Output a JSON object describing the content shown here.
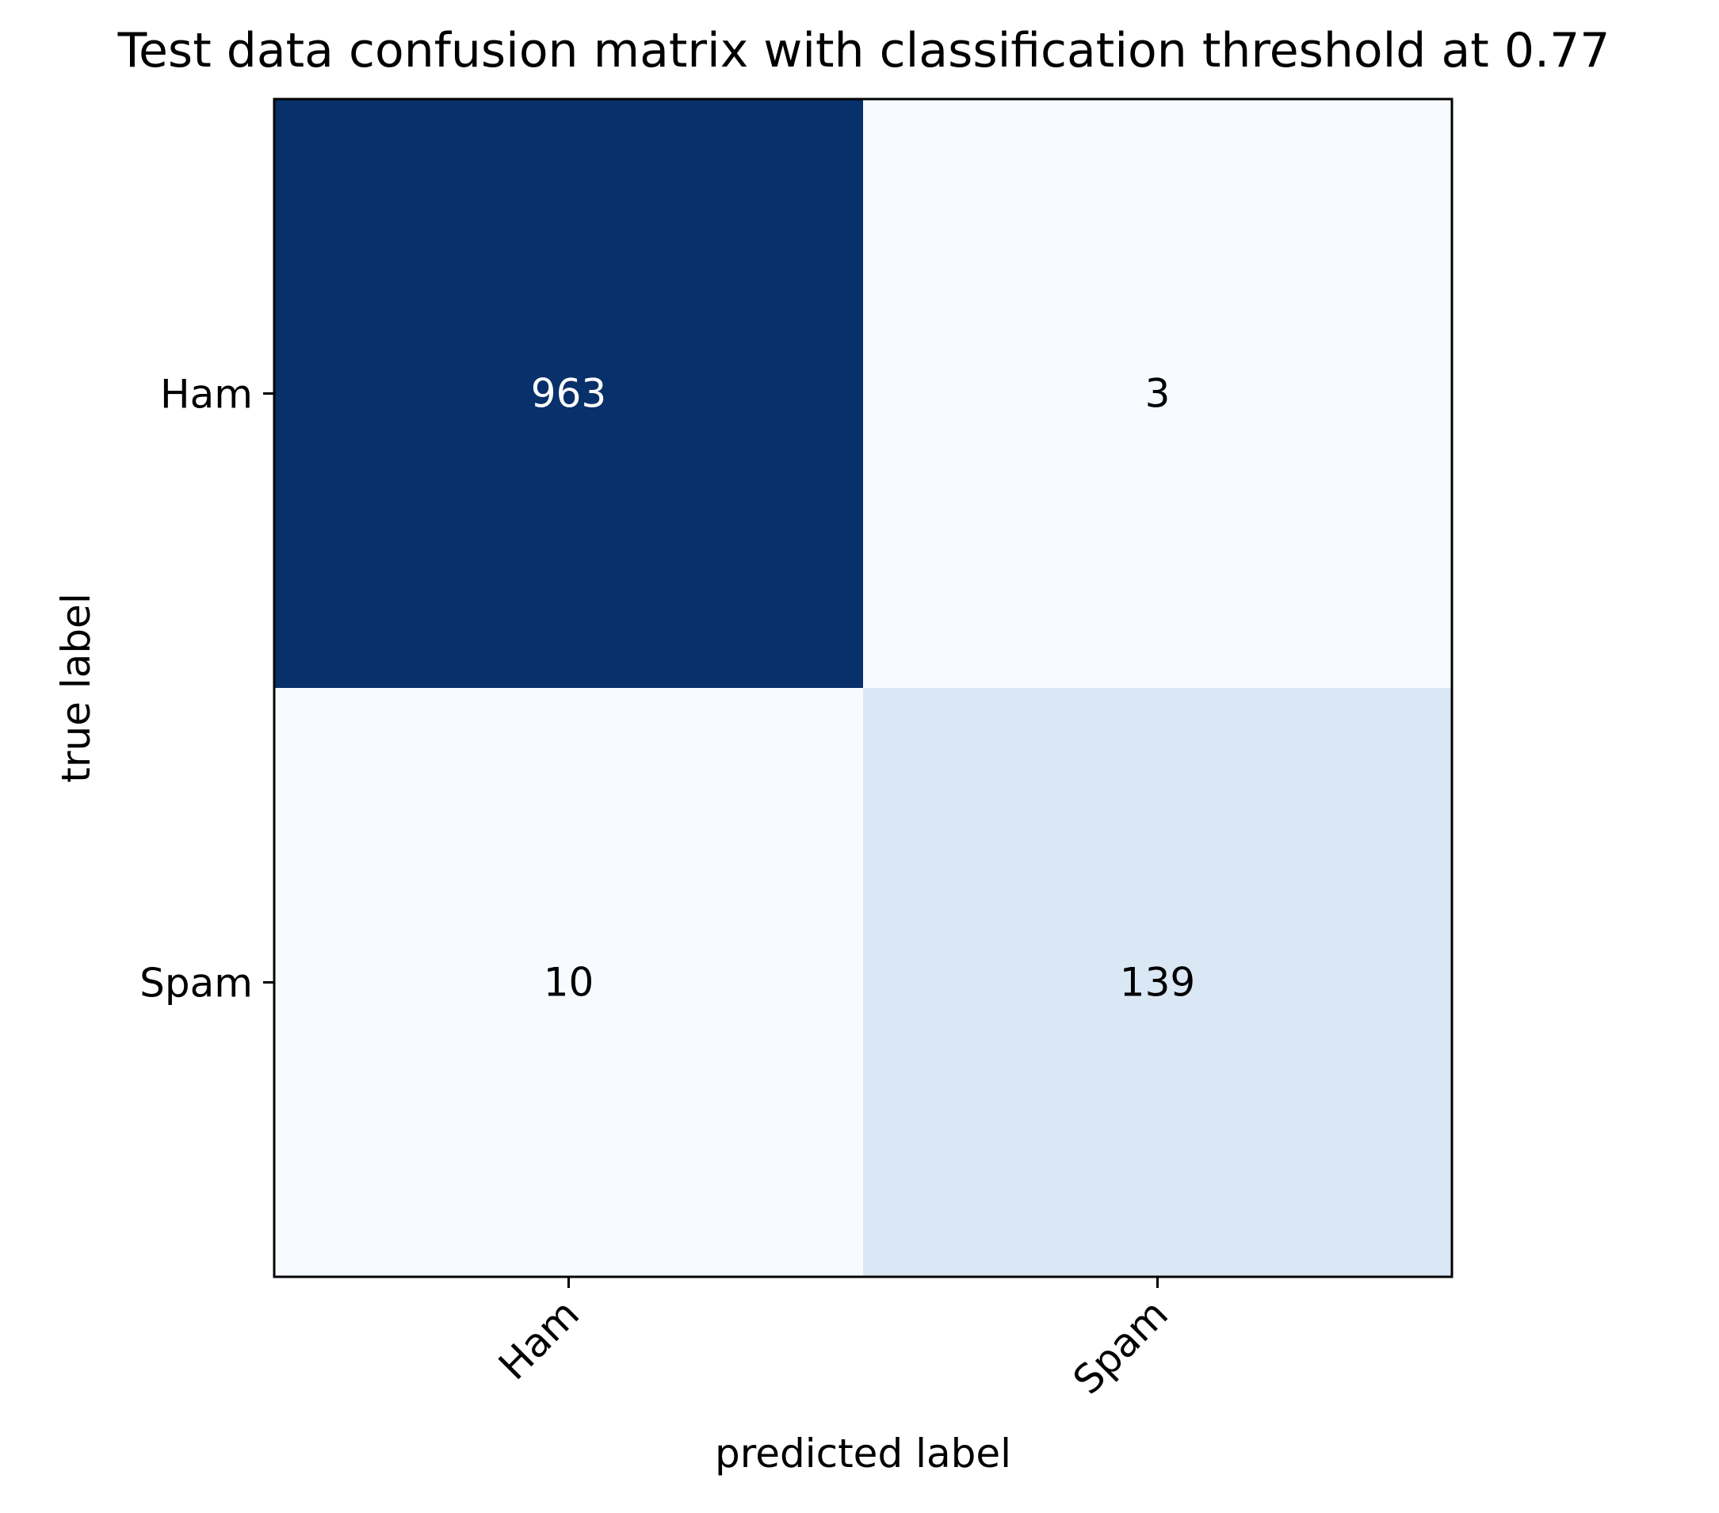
{
  "chart_data": {
    "type": "heatmap",
    "title": "Test data confusion matrix with classification threshold at 0.77",
    "xlabel": "predicted label",
    "ylabel": "true label",
    "x_categories": [
      "Ham",
      "Spam"
    ],
    "y_categories": [
      "Ham",
      "Spam"
    ],
    "values": [
      [
        963,
        3
      ],
      [
        10,
        139
      ]
    ],
    "colormap": "Blues",
    "colormap_range": [
      3,
      963
    ],
    "cell_colors": [
      [
        "#08306b",
        "#f7fbff"
      ],
      [
        "#f7fbff",
        "#dae8f5"
      ]
    ],
    "annotation_colors": [
      [
        "#ffffff",
        "#000000"
      ],
      [
        "#000000",
        "#000000"
      ]
    ],
    "x_tick_rotation_deg": 45,
    "grid": false,
    "legend": "none"
  }
}
